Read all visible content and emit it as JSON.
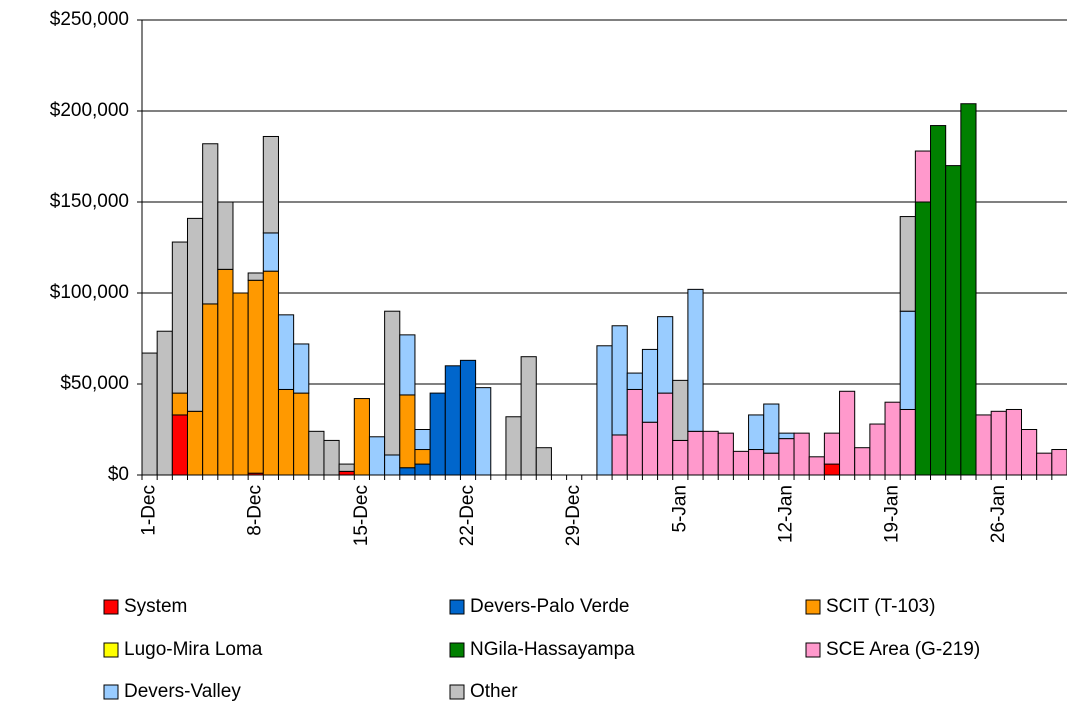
{
  "chart_data": {
    "type": "stacked-bar",
    "categories": [
      "1-Dec",
      null,
      null,
      null,
      null,
      null,
      null,
      "8-Dec",
      null,
      null,
      null,
      null,
      null,
      null,
      "15-Dec",
      null,
      null,
      null,
      null,
      null,
      null,
      "22-Dec",
      null,
      null,
      null,
      null,
      null,
      null,
      "29-Dec",
      null,
      null,
      null,
      null,
      null,
      null,
      "5-Jan",
      null,
      null,
      null,
      null,
      null,
      null,
      "12-Jan",
      null,
      null,
      null,
      null,
      null,
      null,
      "19-Jan",
      null,
      null,
      null,
      null,
      null,
      null,
      "26-Jan",
      null,
      null,
      null,
      null
    ],
    "series": [
      {
        "name": "System",
        "color": "#ff0000",
        "values": [
          0,
          0,
          33000,
          0,
          0,
          0,
          0,
          1000,
          0,
          0,
          0,
          0,
          0,
          2000,
          0,
          0,
          0,
          0,
          0,
          0,
          0,
          0,
          0,
          0,
          0,
          0,
          0,
          0,
          0,
          0,
          0,
          0,
          0,
          0,
          0,
          0,
          0,
          0,
          0,
          0,
          0,
          0,
          0,
          0,
          0,
          6000,
          0,
          0,
          0,
          0,
          0,
          0,
          0,
          0,
          0,
          0,
          0,
          0,
          0,
          0,
          0
        ]
      },
      {
        "name": "Devers-Palo Verde",
        "color": "#0066cc",
        "values": [
          0,
          0,
          0,
          0,
          0,
          0,
          0,
          0,
          0,
          0,
          0,
          0,
          0,
          0,
          0,
          0,
          0,
          4000,
          6000,
          45000,
          60000,
          63000,
          0,
          0,
          0,
          0,
          0,
          0,
          0,
          0,
          0,
          0,
          0,
          0,
          0,
          0,
          0,
          0,
          0,
          0,
          0,
          0,
          0,
          0,
          0,
          0,
          0,
          0,
          0,
          0,
          0,
          0,
          0,
          0,
          0,
          0,
          0,
          0,
          0,
          0,
          0
        ]
      },
      {
        "name": "SCIT (T-103)",
        "color": "#ff9900",
        "values": [
          0,
          0,
          12000,
          35000,
          94000,
          113000,
          100000,
          106000,
          112000,
          47000,
          45000,
          0,
          0,
          0,
          42000,
          0,
          0,
          40000,
          8000,
          0,
          0,
          0,
          0,
          0,
          0,
          0,
          0,
          0,
          0,
          0,
          0,
          0,
          0,
          0,
          0,
          0,
          0,
          0,
          0,
          0,
          0,
          0,
          0,
          0,
          0,
          0,
          0,
          0,
          0,
          0,
          0,
          0,
          0,
          0,
          0,
          0,
          0,
          0,
          0,
          0,
          0
        ]
      },
      {
        "name": "Lugo-Mira Loma",
        "color": "#ffff00",
        "values": [
          0,
          0,
          0,
          0,
          0,
          0,
          0,
          0,
          0,
          0,
          0,
          0,
          0,
          0,
          0,
          0,
          0,
          0,
          0,
          0,
          0,
          0,
          0,
          0,
          0,
          0,
          0,
          0,
          0,
          0,
          0,
          0,
          0,
          0,
          0,
          0,
          0,
          0,
          0,
          0,
          0,
          0,
          0,
          0,
          0,
          0,
          0,
          0,
          0,
          0,
          0,
          0,
          0,
          0,
          0,
          0,
          0,
          0,
          0,
          0,
          0
        ]
      },
      {
        "name": "NGila-Hassayampa",
        "color": "#008000",
        "values": [
          0,
          0,
          0,
          0,
          0,
          0,
          0,
          0,
          0,
          0,
          0,
          0,
          0,
          0,
          0,
          0,
          0,
          0,
          0,
          0,
          0,
          0,
          0,
          0,
          0,
          0,
          0,
          0,
          0,
          0,
          0,
          0,
          0,
          0,
          0,
          0,
          0,
          0,
          0,
          0,
          0,
          0,
          0,
          0,
          0,
          0,
          0,
          0,
          0,
          0,
          0,
          150000,
          192000,
          170000,
          204000,
          0,
          0,
          0,
          0,
          0,
          0
        ]
      },
      {
        "name": "SCE Area (G-219)",
        "color": "#ff99cc",
        "values": [
          0,
          0,
          0,
          0,
          0,
          0,
          0,
          0,
          0,
          0,
          0,
          0,
          0,
          0,
          0,
          0,
          0,
          0,
          0,
          0,
          0,
          0,
          0,
          0,
          0,
          0,
          0,
          0,
          0,
          0,
          0,
          22000,
          47000,
          29000,
          45000,
          19000,
          24000,
          24000,
          23000,
          13000,
          14000,
          12000,
          20000,
          23000,
          10000,
          17000,
          46000,
          15000,
          28000,
          40000,
          36000,
          28000,
          0,
          0,
          0,
          33000,
          35000,
          36000,
          25000,
          12000,
          14000
        ]
      },
      {
        "name": "Devers-Valley",
        "color": "#99ccff",
        "values": [
          0,
          0,
          0,
          0,
          0,
          0,
          0,
          0,
          21000,
          41000,
          27000,
          0,
          0,
          0,
          0,
          21000,
          11000,
          33000,
          11000,
          0,
          0,
          0,
          48000,
          0,
          0,
          0,
          0,
          0,
          0,
          0,
          71000,
          60000,
          9000,
          40000,
          42000,
          0,
          78000,
          0,
          0,
          0,
          19000,
          27000,
          3000,
          0,
          0,
          0,
          0,
          0,
          0,
          0,
          54000,
          0,
          0,
          0,
          0,
          0,
          0,
          0,
          0,
          0,
          0
        ]
      },
      {
        "name": "Other",
        "color": "#c0c0c0",
        "values": [
          67000,
          79000,
          83000,
          106000,
          88000,
          37000,
          0,
          4000,
          53000,
          0,
          0,
          24000,
          19000,
          4000,
          0,
          0,
          79000,
          0,
          0,
          0,
          0,
          0,
          0,
          0,
          32000,
          65000,
          15000,
          0,
          0,
          0,
          0,
          0,
          0,
          0,
          0,
          33000,
          0,
          0,
          0,
          0,
          0,
          0,
          0,
          0,
          0,
          0,
          0,
          0,
          0,
          0,
          52000,
          0,
          0,
          0,
          0,
          0,
          0,
          0,
          0,
          0,
          0
        ]
      }
    ],
    "ylim": [
      0,
      250000
    ],
    "yticks": [
      {
        "value": 0,
        "label": "$0"
      },
      {
        "value": 50000,
        "label": "$50,000"
      },
      {
        "value": 100000,
        "label": "$100,000"
      },
      {
        "value": 150000,
        "label": "$150,000"
      },
      {
        "value": 200000,
        "label": "$200,000"
      },
      {
        "value": 250000,
        "label": "$250,000"
      }
    ],
    "grid": true,
    "legend": "bottom"
  }
}
